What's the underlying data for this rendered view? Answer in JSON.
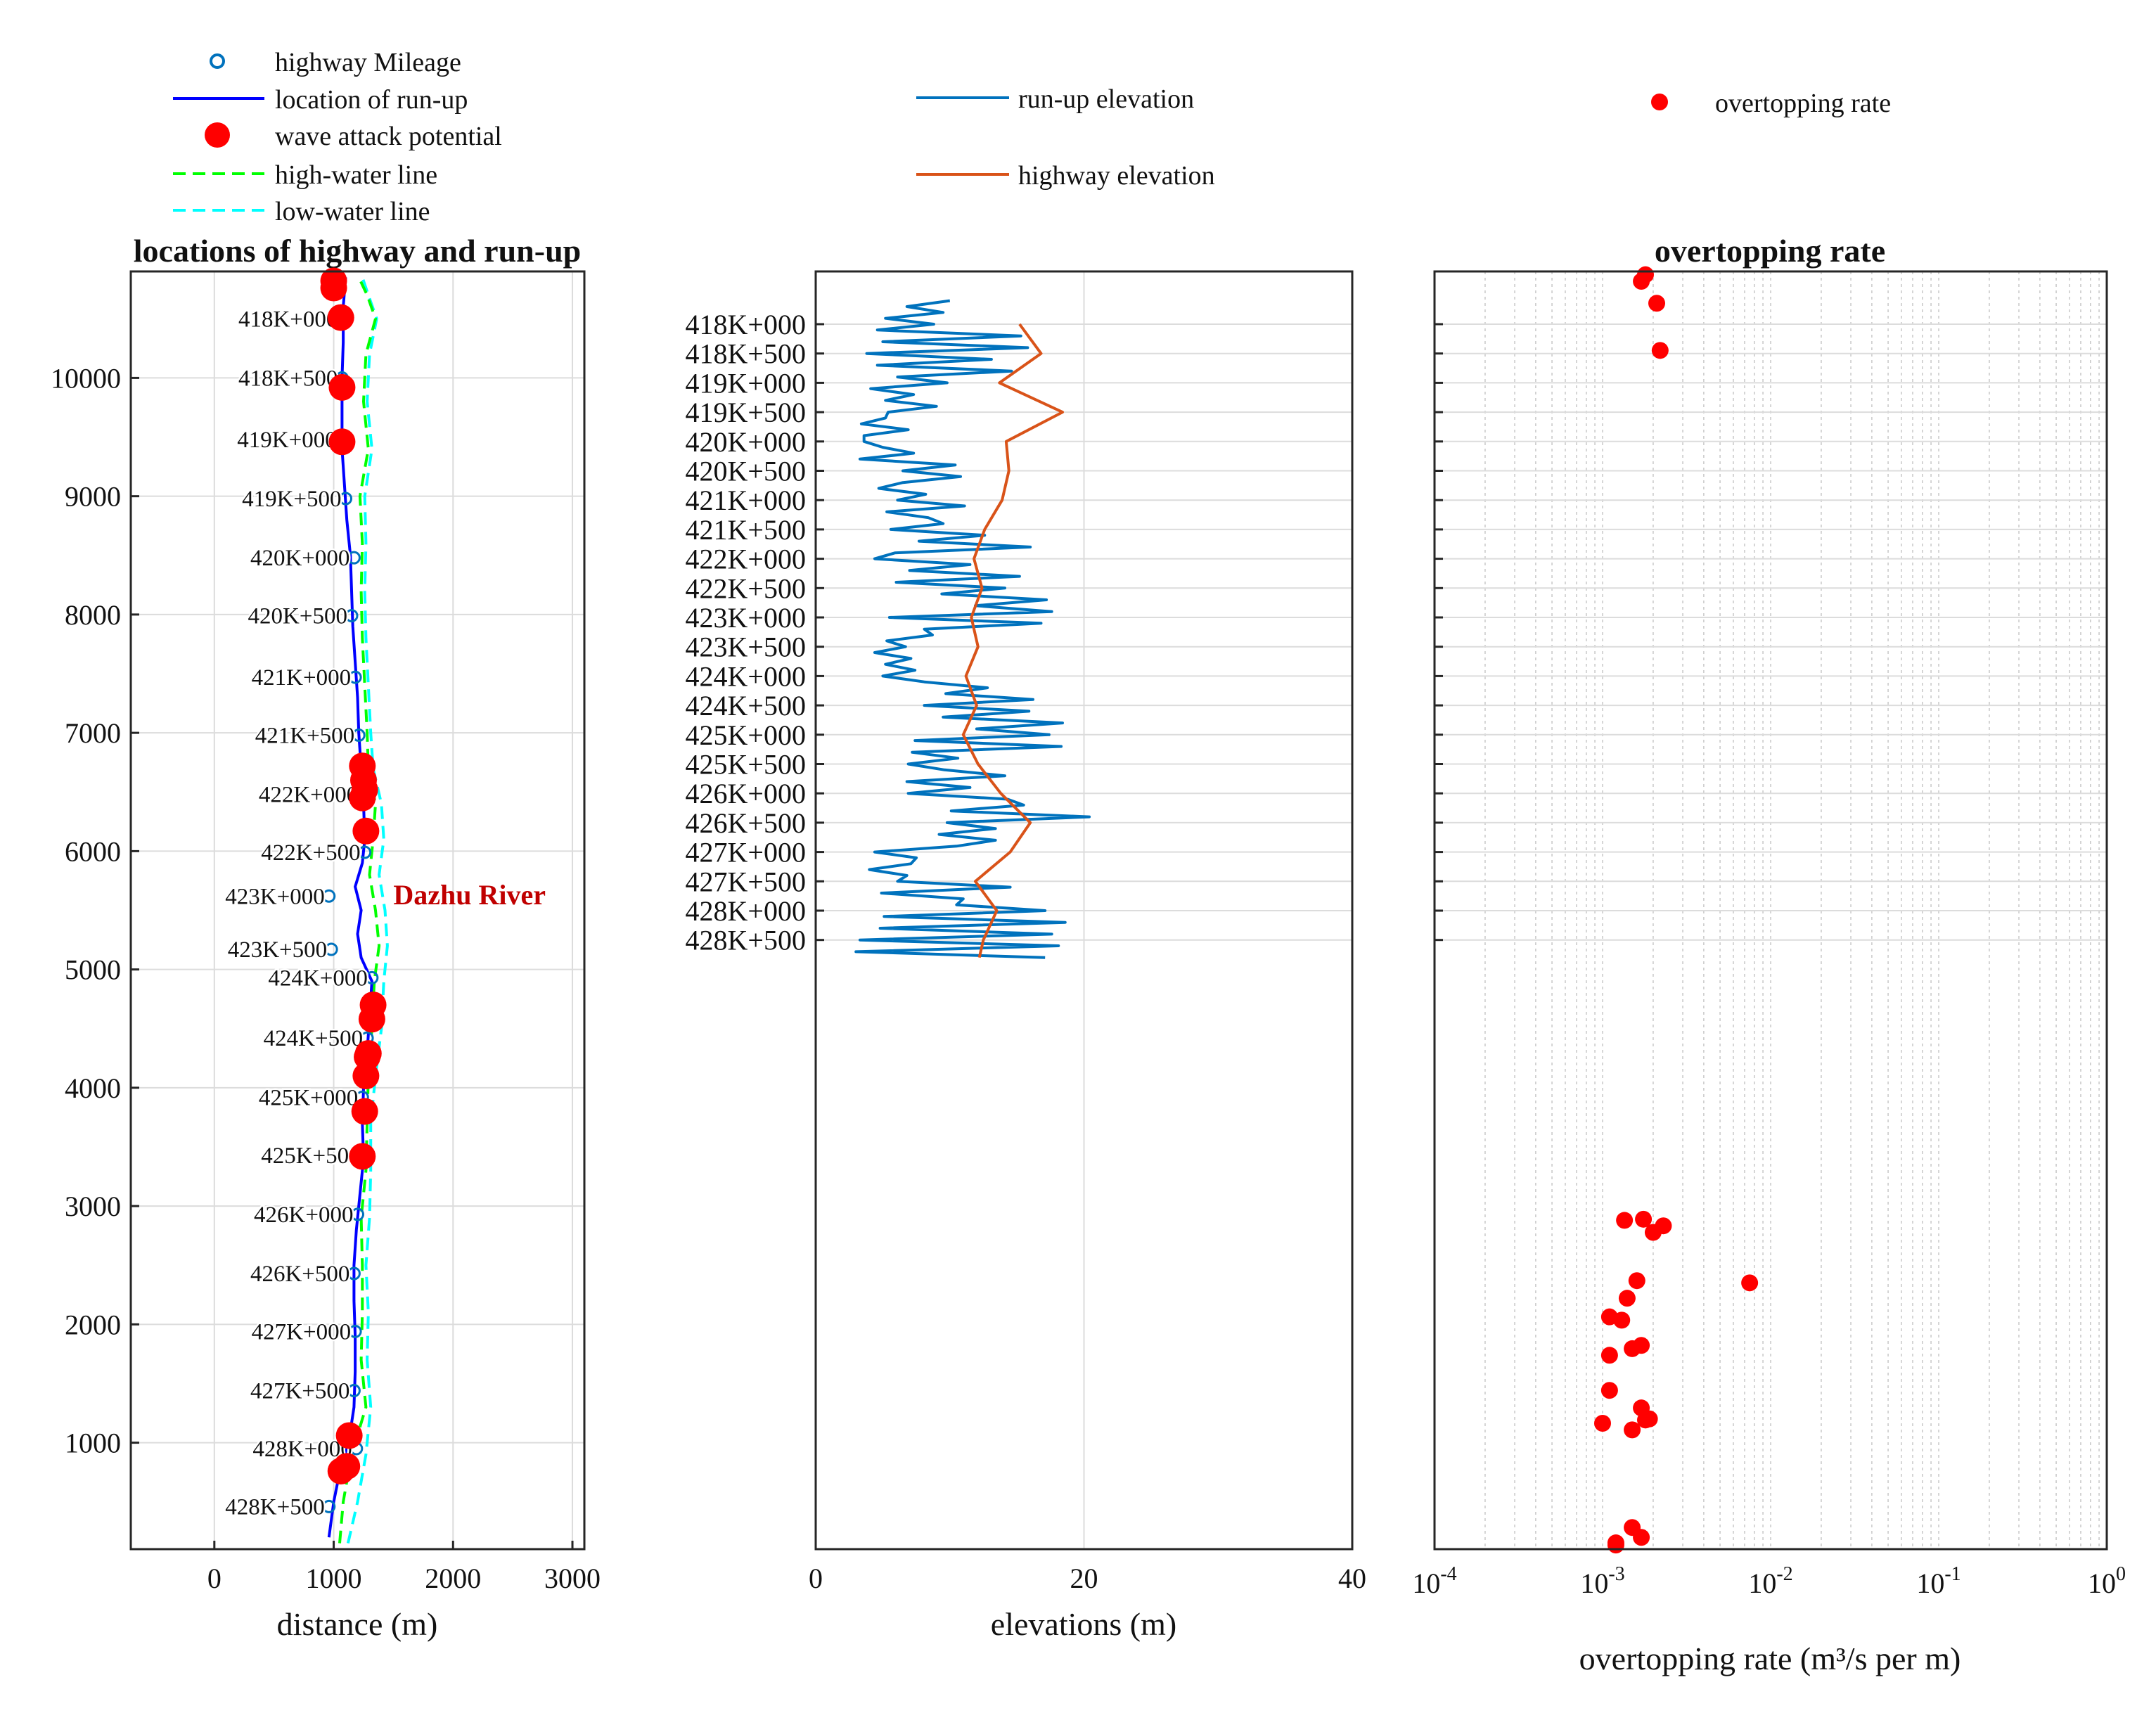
{
  "colors": {
    "mileage": "#0072BD",
    "runup_location": "#0000FF",
    "wave_attack": "#FF0000",
    "high_water": "#00FF00",
    "low_water": "#00FFFF",
    "runup_elevation": "#0072BD",
    "highway_elevation": "#D95319",
    "overtopping": "#FF0000",
    "river_label": "#C00000"
  },
  "legends": {
    "left": [
      "highway Mileage",
      "location of run-up",
      "wave attack potential",
      "high-water line",
      "low-water line"
    ],
    "middle": [
      "run-up elevation",
      "highway elevation"
    ],
    "right": [
      "overtopping rate"
    ]
  },
  "chart_data": [
    {
      "type": "scatter",
      "title": "locations of highway and run-up",
      "xlabel": "distance (m)",
      "ylabel": "",
      "xlim": [
        -700,
        3100
      ],
      "ylim": [
        100,
        10900
      ],
      "xticks": [
        0,
        1000,
        2000,
        3000
      ],
      "yticks": [
        1000,
        2000,
        3000,
        4000,
        5000,
        6000,
        7000,
        8000,
        9000,
        10000
      ],
      "grid": true,
      "legend_position": "top-left",
      "annotation": "Dazhu  River",
      "annotation_at": [
        1500,
        5550
      ],
      "mileage_points": [
        {
          "label": "418K+000",
          "x": 1070,
          "y": 10500
        },
        {
          "label": "418K+500",
          "x": 1070,
          "y": 10000
        },
        {
          "label": "419K+000",
          "x": 1060,
          "y": 9480
        },
        {
          "label": "419K+500",
          "x": 1100,
          "y": 8980
        },
        {
          "label": "420K+000",
          "x": 1170,
          "y": 8480
        },
        {
          "label": "420K+500",
          "x": 1150,
          "y": 7990
        },
        {
          "label": "421K+000",
          "x": 1180,
          "y": 7470
        },
        {
          "label": "421K+500",
          "x": 1210,
          "y": 6980
        },
        {
          "label": "422K+000",
          "x": 1240,
          "y": 6480
        },
        {
          "label": "422K+500",
          "x": 1260,
          "y": 5990
        },
        {
          "label": "423K+000",
          "x": 960,
          "y": 5620
        },
        {
          "label": "423K+500",
          "x": 980,
          "y": 5170
        },
        {
          "label": "424K+000",
          "x": 1320,
          "y": 4930
        },
        {
          "label": "424K+500",
          "x": 1280,
          "y": 4420
        },
        {
          "label": "425K+000",
          "x": 1240,
          "y": 3920
        },
        {
          "label": "425K+500",
          "x": 1260,
          "y": 3430
        },
        {
          "label": "426K+000",
          "x": 1200,
          "y": 2930
        },
        {
          "label": "426K+500",
          "x": 1170,
          "y": 2430
        },
        {
          "label": "427K+000",
          "x": 1180,
          "y": 1940
        },
        {
          "label": "427K+500",
          "x": 1170,
          "y": 1440
        },
        {
          "label": "428K+000",
          "x": 1190,
          "y": 950
        },
        {
          "label": "428K+500",
          "x": 960,
          "y": 460
        }
      ],
      "runup_location": {
        "y": [
          200,
          350,
          500,
          700,
          900,
          1100,
          1300,
          1600,
          1900,
          2200,
          2500,
          2800,
          3100,
          3400,
          3700,
          4000,
          4300,
          4600,
          4900,
          5100,
          5300,
          5500,
          5700,
          5900,
          6100,
          6400,
          6700,
          7000,
          7300,
          7600,
          7900,
          8200,
          8500,
          8800,
          9100,
          9400,
          9700,
          10000,
          10300,
          10600,
          10850
        ],
        "x": [
          960,
          980,
          1000,
          1040,
          1100,
          1140,
          1170,
          1180,
          1180,
          1170,
          1170,
          1190,
          1220,
          1250,
          1240,
          1250,
          1280,
          1300,
          1320,
          1230,
          1200,
          1230,
          1180,
          1240,
          1260,
          1250,
          1230,
          1210,
          1200,
          1180,
          1160,
          1150,
          1140,
          1110,
          1090,
          1070,
          1070,
          1070,
          1080,
          1080,
          1100
        ]
      },
      "high_water_line": {
        "y": [
          150,
          500,
          900,
          1300,
          1700,
          2100,
          2500,
          2900,
          3300,
          3700,
          4100,
          4500,
          4900,
          5200,
          5500,
          5800,
          6100,
          6400,
          6700,
          7000,
          7400,
          7800,
          8200,
          8600,
          9000,
          9400,
          9800,
          10200,
          10500,
          10700,
          10850
        ],
        "x": [
          1050,
          1080,
          1150,
          1270,
          1230,
          1240,
          1240,
          1230,
          1270,
          1280,
          1290,
          1320,
          1340,
          1380,
          1350,
          1300,
          1330,
          1350,
          1290,
          1280,
          1260,
          1240,
          1230,
          1240,
          1220,
          1290,
          1250,
          1270,
          1350,
          1280,
          1210
        ]
      },
      "low_water_line": {
        "y": [
          150,
          500,
          900,
          1300,
          1700,
          2100,
          2500,
          2900,
          3300,
          3700,
          4100,
          4500,
          4900,
          5200,
          5500,
          5800,
          6100,
          6400,
          6700,
          7000,
          7400,
          7800,
          8200,
          8600,
          9000,
          9400,
          9800,
          10200,
          10500,
          10700,
          10850
        ],
        "x": [
          1120,
          1200,
          1270,
          1310,
          1280,
          1290,
          1270,
          1300,
          1310,
          1310,
          1350,
          1400,
          1420,
          1450,
          1430,
          1380,
          1420,
          1400,
          1330,
          1310,
          1290,
          1270,
          1260,
          1270,
          1260,
          1320,
          1280,
          1300,
          1360,
          1290,
          1240
        ]
      },
      "wave_attack_points": [
        {
          "x": 1000,
          "y": 10820
        },
        {
          "x": 1000,
          "y": 10760
        },
        {
          "x": 1060,
          "y": 10510
        },
        {
          "x": 1070,
          "y": 9920
        },
        {
          "x": 1070,
          "y": 9460
        },
        {
          "x": 1240,
          "y": 6720
        },
        {
          "x": 1250,
          "y": 6600
        },
        {
          "x": 1260,
          "y": 6520
        },
        {
          "x": 1240,
          "y": 6450
        },
        {
          "x": 1270,
          "y": 6170
        },
        {
          "x": 1330,
          "y": 4700
        },
        {
          "x": 1320,
          "y": 4580
        },
        {
          "x": 1290,
          "y": 4290
        },
        {
          "x": 1280,
          "y": 4260
        },
        {
          "x": 1270,
          "y": 4100
        },
        {
          "x": 1260,
          "y": 3800
        },
        {
          "x": 1240,
          "y": 3420
        },
        {
          "x": 1130,
          "y": 1060
        },
        {
          "x": 1110,
          "y": 800
        },
        {
          "x": 1060,
          "y": 760
        }
      ]
    },
    {
      "type": "line",
      "title": "",
      "xlabel": "elevations (m)",
      "xlim": [
        0,
        40
      ],
      "xticks": [
        0,
        20,
        40
      ],
      "ytick_labels": [
        "418K+000",
        "418K+500",
        "419K+000",
        "419K+500",
        "420K+000",
        "420K+500",
        "421K+000",
        "421K+500",
        "422K+000",
        "422K+500",
        "423K+000",
        "423K+500",
        "424K+000",
        "424K+500",
        "425K+000",
        "425K+500",
        "426K+000",
        "426K+500",
        "427K+000",
        "427K+500",
        "428K+000",
        "428K+500"
      ],
      "grid": true,
      "legend_position": "top",
      "series": [
        {
          "name": "highway elevation",
          "station": [
            0,
            500,
            1000,
            1500,
            2000,
            2500,
            3000,
            3500,
            4000,
            4500,
            5000,
            5500,
            6000,
            6500,
            7000,
            7500,
            8000,
            8500,
            9000,
            9500,
            10000,
            10500,
            10800
          ],
          "values": [
            15.2,
            16.8,
            13.7,
            18.4,
            14.2,
            14.4,
            13.9,
            12.6,
            11.8,
            12.4,
            11.6,
            12.1,
            11.2,
            12.0,
            11.0,
            12.1,
            13.8,
            16.0,
            14.5,
            11.9,
            13.5,
            12.5,
            12.2
          ]
        },
        {
          "name": "run-up elevation",
          "station": [
            -400,
            -300,
            -200,
            -100,
            0,
            100,
            200,
            300,
            400,
            500,
            600,
            700,
            800,
            900,
            1000,
            1100,
            1200,
            1300,
            1400,
            1500,
            1600,
            1700,
            1800,
            1900,
            2000,
            2100,
            2200,
            2300,
            2400,
            2500,
            2600,
            2700,
            2800,
            2900,
            3000,
            3100,
            3200,
            3300,
            3400,
            3500,
            3600,
            3700,
            3800,
            3900,
            4000,
            4100,
            4200,
            4300,
            4400,
            4500,
            4600,
            4700,
            4800,
            4900,
            5000,
            5100,
            5200,
            5300,
            5400,
            5500,
            5600,
            5700,
            5800,
            5900,
            6000,
            6100,
            6200,
            6300,
            6400,
            6500,
            6600,
            6700,
            6800,
            6900,
            7000,
            7100,
            7200,
            7300,
            7400,
            7500,
            7600,
            7700,
            7800,
            7900,
            8000,
            8100,
            8200,
            8300,
            8400,
            8500,
            8600,
            8700,
            8800,
            8900,
            9000,
            9100,
            9200,
            9300,
            9400,
            9500,
            9600,
            9700,
            9800,
            9900,
            10000,
            10100,
            10200,
            10300,
            10400,
            10500,
            10600,
            10700,
            10800
          ],
          "values": [
            10.0,
            6.8,
            9.5,
            5.2,
            8.8,
            4.6,
            15.3,
            5.0,
            15.8,
            3.8,
            13.1,
            4.6,
            14.6,
            6.1,
            9.8,
            4.1,
            7.3,
            5.2,
            9.0,
            5.4,
            5.2,
            3.4,
            6.9,
            3.6,
            3.6,
            5.0,
            7.3,
            3.3,
            10.4,
            6.5,
            10.8,
            6.5,
            4.7,
            8.2,
            6.1,
            11.1,
            5.3,
            8.4,
            9.5,
            5.6,
            12.6,
            7.7,
            16.0,
            5.9,
            4.4,
            11.5,
            7.0,
            15.2,
            6.0,
            14.1,
            9.4,
            17.2,
            11.9,
            17.6,
            5.5,
            16.8,
            8.1,
            8.7,
            5.3,
            6.7,
            4.4,
            7.1,
            5.2,
            7.4,
            5.0,
            8.1,
            12.8,
            9.7,
            16.2,
            8.1,
            15.9,
            9.5,
            18.4,
            12.0,
            17.4,
            7.4,
            18.3,
            7.2,
            10.6,
            6.9,
            9.6,
            14.1,
            6.8,
            11.5,
            6.9,
            14.3,
            15.5,
            10.1,
            20.4,
            9.8,
            13.4,
            9.2,
            13.4,
            10.5,
            4.4,
            7.5,
            7.1,
            4.0,
            6.8,
            6.1,
            14.5,
            4.9,
            11.0,
            10.5,
            17.1,
            5.1,
            18.6,
            4.8,
            17.6,
            3.3,
            18.1,
            3.0,
            17.1
          ]
        }
      ]
    },
    {
      "type": "scatter",
      "title": "overtopping rate",
      "xlabel": "overtopping rate (m³/s per m)",
      "xscale": "log",
      "xlim": [
        0.0001,
        1
      ],
      "xtick_labels": [
        "10-4",
        "10-3",
        "10-2",
        "10-1",
        "100"
      ],
      "grid": true,
      "legend_position": "top-right",
      "series": [
        {
          "name": "overtopping rate",
          "station": [
            30,
            90,
            290,
            720,
            8640,
            8650,
            8700,
            8760,
            9200,
            9220,
            9360,
            9530,
            9560,
            9790,
            9820,
            9880,
            10200,
            10360,
            10460,
            10470,
            10500,
            10560,
            11450,
            11540,
            11590,
            11610
          ],
          "values": [
            0.0018,
            0.0017,
            0.0021,
            0.0022,
            0.00175,
            0.00135,
            0.0023,
            0.002,
            0.0016,
            0.0075,
            0.0014,
            0.0011,
            0.0013,
            0.0017,
            0.0015,
            0.0011,
            0.0011,
            0.0017,
            0.0019,
            0.0018,
            0.001,
            0.0015,
            0.0015,
            0.0017,
            0.0012,
            0.0012
          ]
        }
      ]
    }
  ]
}
